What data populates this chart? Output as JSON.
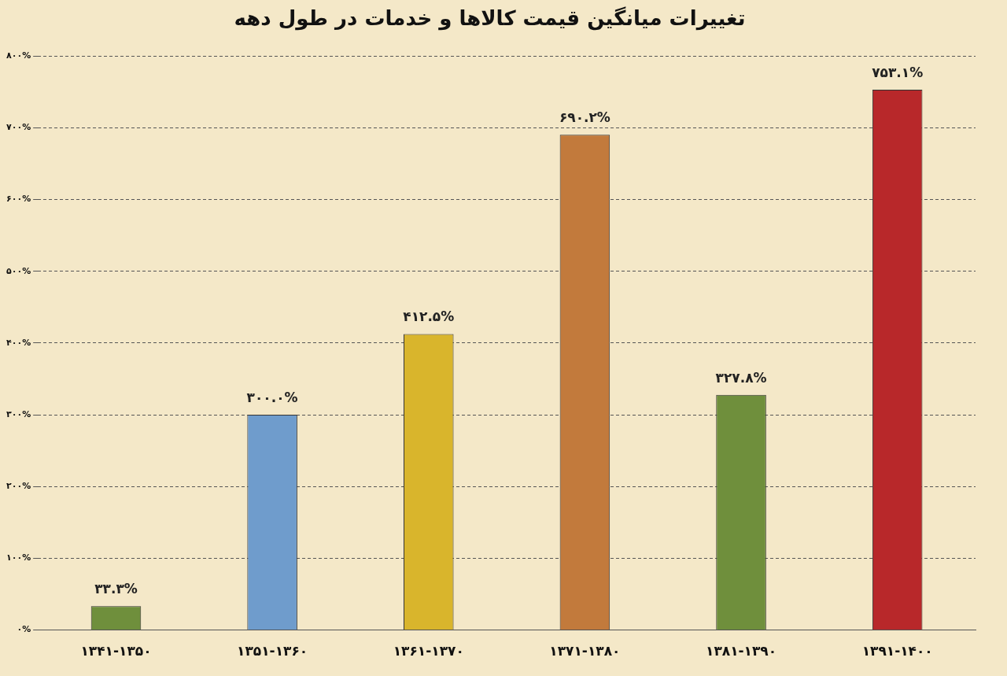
{
  "chart_data": {
    "type": "bar",
    "title": "تغییرات میانگین قیمت کالاها و خدمات در طول دهه",
    "categories": [
      "۱۳۴۱-۱۳۵۰",
      "۱۳۵۱-۱۳۶۰",
      "۱۳۶۱-۱۳۷۰",
      "۱۳۷۱-۱۳۸۰",
      "۱۳۸۱-۱۳۹۰",
      "۱۳۹۱-۱۴۰۰"
    ],
    "values": [
      33.3,
      300.0,
      412.5,
      690.2,
      327.8,
      753.1
    ],
    "colors": [
      "#6f8f3c",
      "#6f9ccc",
      "#d9b52c",
      "#c27a3c",
      "#6f8f3c",
      "#b8282a"
    ],
    "value_labels": [
      "۳۳.۳%",
      "۳۰۰.۰%",
      "۴۱۲.۵%",
      "۶۹۰.۲%",
      "۳۲۷.۸%",
      "۷۵۳.۱%"
    ],
    "ylim": [
      0,
      800
    ],
    "yticks": [
      {
        "value": 0,
        "label": "۰%"
      },
      {
        "value": 100,
        "label": "۱۰۰%"
      },
      {
        "value": 200,
        "label": "۲۰۰%"
      },
      {
        "value": 300,
        "label": "۳۰۰%"
      },
      {
        "value": 400,
        "label": "۴۰۰%"
      },
      {
        "value": 500,
        "label": "۵۰۰%"
      },
      {
        "value": 600,
        "label": "۶۰۰%"
      },
      {
        "value": 700,
        "label": "۷۰۰%"
      },
      {
        "value": 800,
        "label": "۸۰۰%"
      }
    ],
    "grid": "y",
    "legend": false
  }
}
